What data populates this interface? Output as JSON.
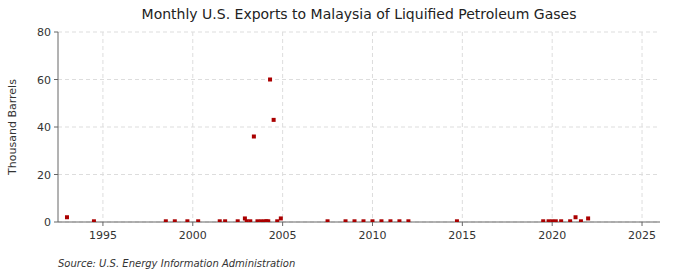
{
  "chart_data": {
    "type": "scatter",
    "title": "Monthly U.S. Exports to Malaysia of Liquified Petroleum Gases",
    "ylabel": "Thousand Barrels",
    "source": "Source: U.S. Energy Information Administration",
    "x": [
      1993.0,
      1994.5,
      1998.5,
      1999.0,
      1999.7,
      2000.3,
      2001.5,
      2001.8,
      2002.5,
      2002.9,
      2003.0,
      2003.2,
      2003.4,
      2003.6,
      2003.8,
      2004.0,
      2004.1,
      2004.2,
      2004.3,
      2004.5,
      2004.7,
      2004.9,
      2007.5,
      2008.5,
      2009.0,
      2009.5,
      2010.0,
      2010.5,
      2011.0,
      2011.5,
      2012.0,
      2014.7,
      2019.5,
      2019.8,
      2020.0,
      2020.2,
      2020.5,
      2021.0,
      2021.3,
      2021.6,
      2022.0
    ],
    "values": [
      2.0,
      0.3,
      0.3,
      0.3,
      0.3,
      0.3,
      0.3,
      0.3,
      0.3,
      1.5,
      0.3,
      0.3,
      36.0,
      0.3,
      0.3,
      0.3,
      0.3,
      0.3,
      60.0,
      43.0,
      0.3,
      1.5,
      0.3,
      0.3,
      0.3,
      0.3,
      0.3,
      0.3,
      0.3,
      0.3,
      0.3,
      0.3,
      0.3,
      0.3,
      0.3,
      0.3,
      0.3,
      0.3,
      2.0,
      0.3,
      1.5
    ],
    "xlim": [
      1992.5,
      2026
    ],
    "ylim": [
      0,
      80
    ],
    "xticks": [
      1995,
      2000,
      2005,
      2010,
      2015,
      2020,
      2025
    ],
    "yticks": [
      0,
      20,
      40,
      60,
      80
    ],
    "color": "#aa0000",
    "marker": "square",
    "grid": true
  }
}
